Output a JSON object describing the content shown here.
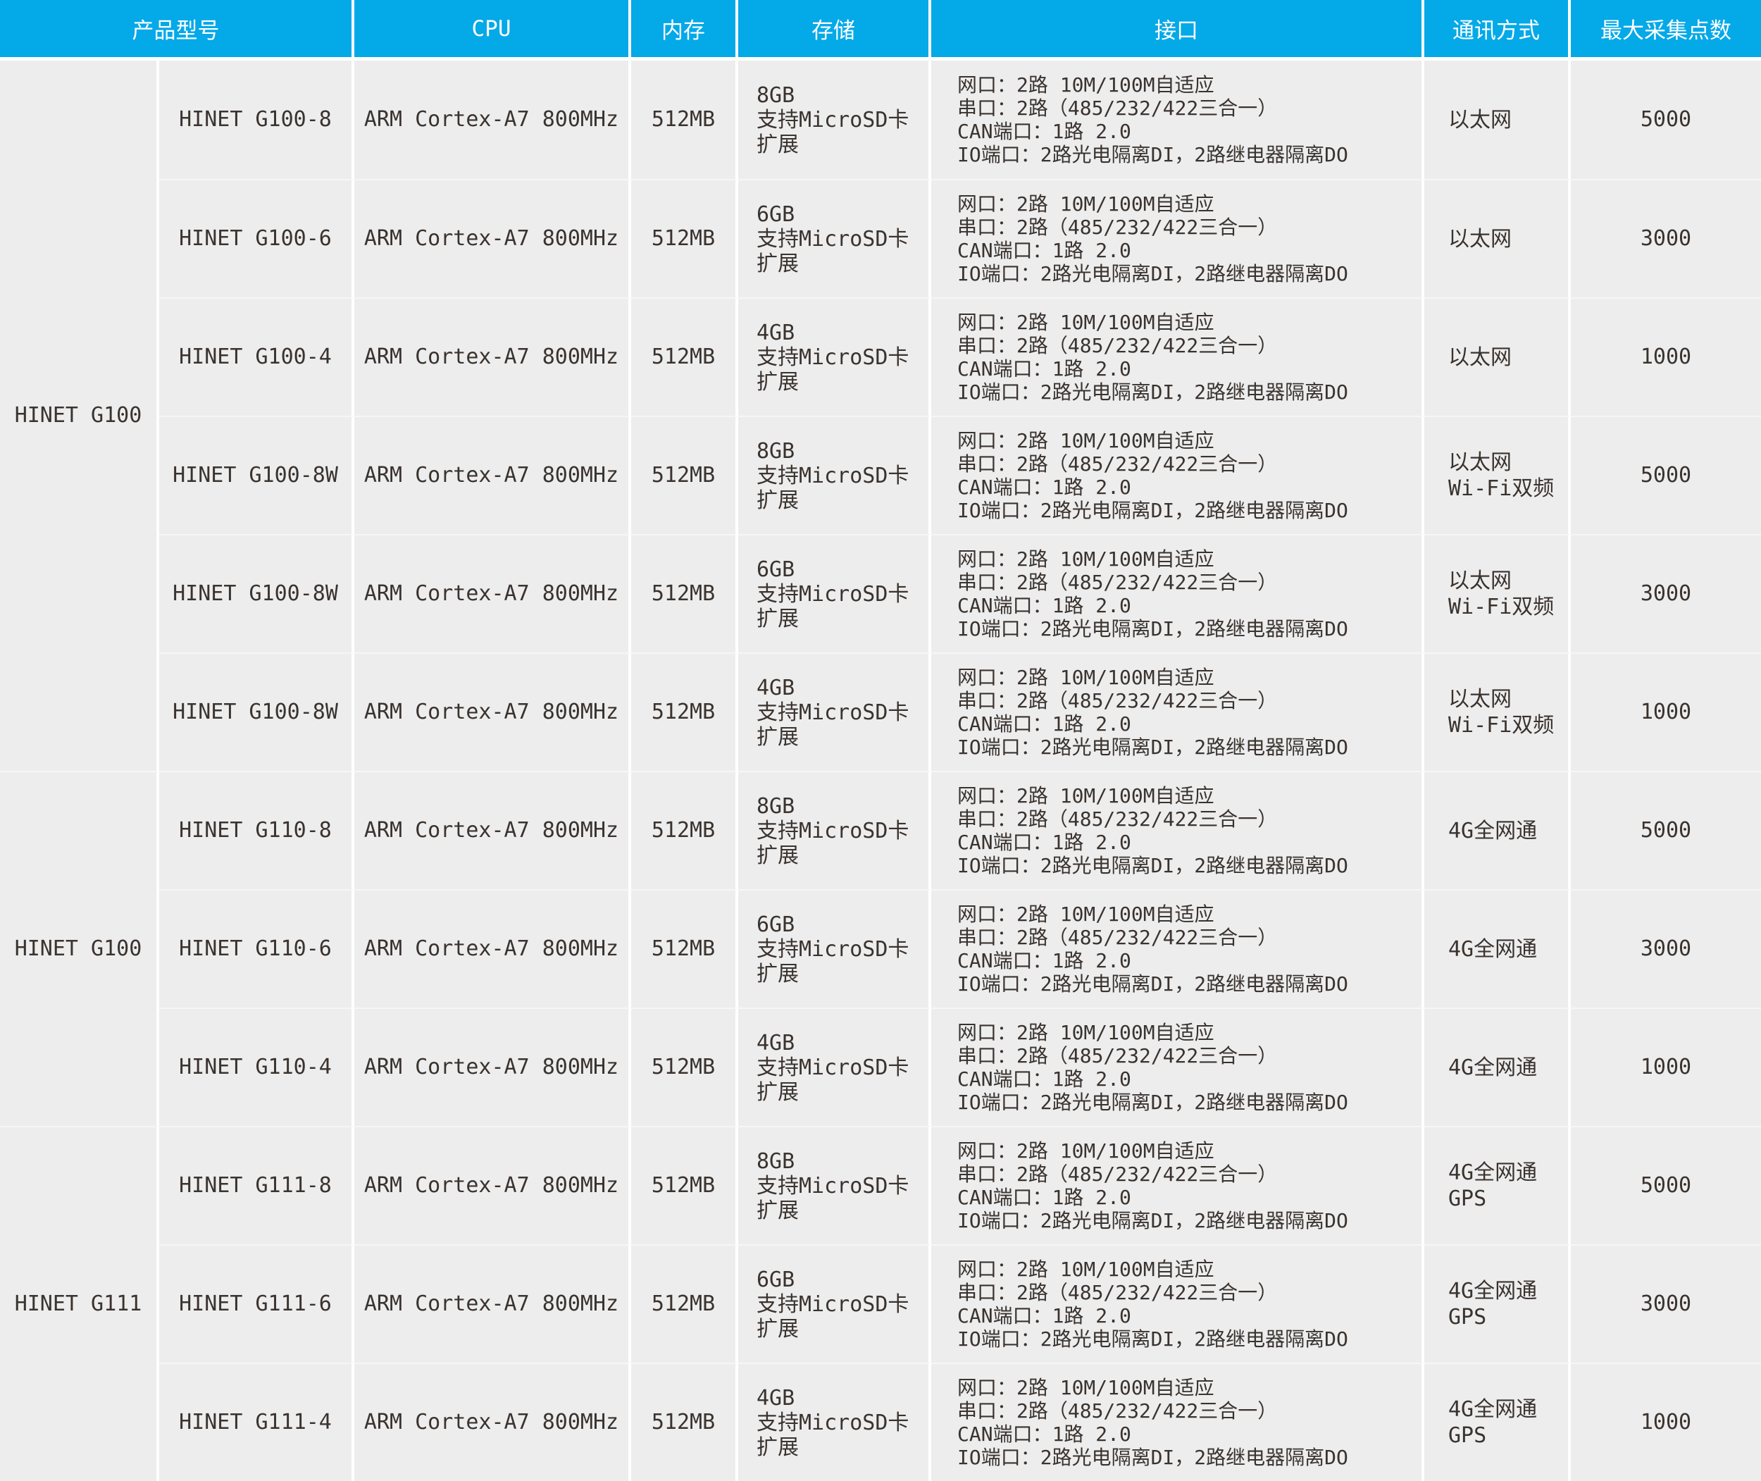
{
  "colors": {
    "header_bg": "#04a9e8",
    "header_text": "#ffffff",
    "body_bg": "#ededee",
    "divider": "#ffffff",
    "row_line": "#f6f6f7",
    "text": "#3a332e"
  },
  "header": {
    "columns": [
      "产品型号",
      "CPU",
      "内存",
      "存储",
      "接口",
      "通讯方式",
      "最大采集点数"
    ]
  },
  "groups": [
    {
      "label": "HINET G100",
      "rows": [
        {
          "model": "HINET G100-8",
          "cpu": "ARM Cortex-A7 800MHz",
          "memory": "512MB",
          "storage": "8GB\n支持MicroSD卡\n扩展",
          "interface": "网口：2路 10M/100M自适应\n串口：2路（485/232/422三合一）\nCAN端口：1路 2.0\nIO端口：2路光电隔离DI，2路继电器隔离DO",
          "comm": "以太网",
          "max_points": "5000"
        },
        {
          "model": "HINET G100-6",
          "cpu": "ARM Cortex-A7 800MHz",
          "memory": "512MB",
          "storage": "6GB\n支持MicroSD卡\n扩展",
          "interface": "网口：2路 10M/100M自适应\n串口：2路（485/232/422三合一）\nCAN端口：1路 2.0\nIO端口：2路光电隔离DI，2路继电器隔离DO",
          "comm": "以太网",
          "max_points": "3000"
        },
        {
          "model": "HINET G100-4",
          "cpu": "ARM Cortex-A7 800MHz",
          "memory": "512MB",
          "storage": "4GB\n支持MicroSD卡\n扩展",
          "interface": "网口：2路 10M/100M自适应\n串口：2路（485/232/422三合一）\nCAN端口：1路 2.0\nIO端口：2路光电隔离DI，2路继电器隔离DO",
          "comm": "以太网",
          "max_points": "1000"
        },
        {
          "model": "HINET G100-8W",
          "cpu": "ARM Cortex-A7 800MHz",
          "memory": "512MB",
          "storage": "8GB\n支持MicroSD卡\n扩展",
          "interface": "网口：2路 10M/100M自适应\n串口：2路（485/232/422三合一）\nCAN端口：1路 2.0\nIO端口：2路光电隔离DI，2路继电器隔离DO",
          "comm": "以太网\nWi-Fi双频",
          "max_points": "5000"
        },
        {
          "model": "HINET G100-8W",
          "cpu": "ARM Cortex-A7 800MHz",
          "memory": "512MB",
          "storage": "6GB\n支持MicroSD卡\n扩展",
          "interface": "网口：2路 10M/100M自适应\n串口：2路（485/232/422三合一）\nCAN端口：1路 2.0\nIO端口：2路光电隔离DI，2路继电器隔离DO",
          "comm": "以太网\nWi-Fi双频",
          "max_points": "3000"
        },
        {
          "model": "HINET G100-8W",
          "cpu": "ARM Cortex-A7 800MHz",
          "memory": "512MB",
          "storage": "4GB\n支持MicroSD卡\n扩展",
          "interface": "网口：2路 10M/100M自适应\n串口：2路（485/232/422三合一）\nCAN端口：1路 2.0\nIO端口：2路光电隔离DI，2路继电器隔离DO",
          "comm": "以太网\nWi-Fi双频",
          "max_points": "1000"
        }
      ]
    },
    {
      "label": "HINET G100",
      "rows": [
        {
          "model": "HINET G110-8",
          "cpu": "ARM Cortex-A7 800MHz",
          "memory": "512MB",
          "storage": "8GB\n支持MicroSD卡\n扩展",
          "interface": "网口：2路 10M/100M自适应\n串口：2路（485/232/422三合一）\nCAN端口：1路 2.0\nIO端口：2路光电隔离DI，2路继电器隔离DO",
          "comm": "4G全网通",
          "max_points": "5000"
        },
        {
          "model": "HINET G110-6",
          "cpu": "ARM Cortex-A7 800MHz",
          "memory": "512MB",
          "storage": "6GB\n支持MicroSD卡\n扩展",
          "interface": "网口：2路 10M/100M自适应\n串口：2路（485/232/422三合一）\nCAN端口：1路 2.0\nIO端口：2路光电隔离DI，2路继电器隔离DO",
          "comm": "4G全网通",
          "max_points": "3000"
        },
        {
          "model": "HINET G110-4",
          "cpu": "ARM Cortex-A7 800MHz",
          "memory": "512MB",
          "storage": "4GB\n支持MicroSD卡\n扩展",
          "interface": "网口：2路 10M/100M自适应\n串口：2路（485/232/422三合一）\nCAN端口：1路 2.0\nIO端口：2路光电隔离DI，2路继电器隔离DO",
          "comm": "4G全网通",
          "max_points": "1000"
        }
      ]
    },
    {
      "label": "HINET G111",
      "rows": [
        {
          "model": "HINET G111-8",
          "cpu": "ARM Cortex-A7 800MHz",
          "memory": "512MB",
          "storage": "8GB\n支持MicroSD卡\n扩展",
          "interface": "网口：2路 10M/100M自适应\n串口：2路（485/232/422三合一）\nCAN端口：1路 2.0\nIO端口：2路光电隔离DI，2路继电器隔离DO",
          "comm": "4G全网通\nGPS",
          "max_points": "5000"
        },
        {
          "model": "HINET G111-6",
          "cpu": "ARM Cortex-A7 800MHz",
          "memory": "512MB",
          "storage": "6GB\n支持MicroSD卡\n扩展",
          "interface": "网口：2路 10M/100M自适应\n串口：2路（485/232/422三合一）\nCAN端口：1路 2.0\nIO端口：2路光电隔离DI，2路继电器隔离DO",
          "comm": "4G全网通\nGPS",
          "max_points": "3000"
        },
        {
          "model": "HINET G111-4",
          "cpu": "ARM Cortex-A7 800MHz",
          "memory": "512MB",
          "storage": "4GB\n支持MicroSD卡\n扩展",
          "interface": "网口：2路 10M/100M自适应\n串口：2路（485/232/422三合一）\nCAN端口：1路 2.0\nIO端口：2路光电隔离DI，2路继电器隔离DO",
          "comm": "4G全网通\nGPS",
          "max_points": "1000"
        }
      ]
    }
  ]
}
